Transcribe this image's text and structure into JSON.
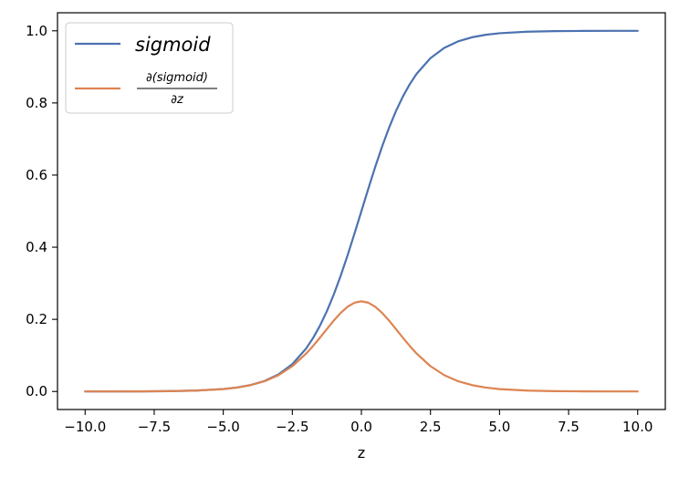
{
  "chart_data": {
    "type": "line",
    "xlabel": "z",
    "ylabel": "",
    "xlim": [
      -11.0,
      11.0
    ],
    "ylim": [
      -0.05,
      1.05
    ],
    "xticks": [
      -10.0,
      -7.5,
      -5.0,
      -2.5,
      0.0,
      2.5,
      5.0,
      7.5,
      10.0
    ],
    "xtick_labels": [
      "−10.0",
      "−7.5",
      "−5.0",
      "−2.5",
      "0.0",
      "2.5",
      "5.0",
      "7.5",
      "10.0"
    ],
    "yticks": [
      0.0,
      0.2,
      0.4,
      0.6,
      0.8,
      1.0
    ],
    "ytick_labels": [
      "0.0",
      "0.2",
      "0.4",
      "0.6",
      "0.8",
      "1.0"
    ],
    "grid": false,
    "legend_position": "top-left",
    "x": [
      -10.0,
      -9.0,
      -8.0,
      -7.0,
      -6.0,
      -5.0,
      -4.5,
      -4.0,
      -3.5,
      -3.0,
      -2.5,
      -2.0,
      -1.75,
      -1.5,
      -1.25,
      -1.0,
      -0.75,
      -0.5,
      -0.25,
      0.0,
      0.25,
      0.5,
      0.75,
      1.0,
      1.25,
      1.5,
      1.75,
      2.0,
      2.5,
      3.0,
      3.5,
      4.0,
      4.5,
      5.0,
      6.0,
      7.0,
      8.0,
      9.0,
      10.0
    ],
    "series": [
      {
        "name": "sigmoid",
        "color": "#4c72b0",
        "values": [
          4.54e-05,
          0.0001234,
          0.0003354,
          0.0009111,
          0.0024726,
          0.0066929,
          0.0109869,
          0.0179862,
          0.0293122,
          0.0474259,
          0.0758582,
          0.1192029,
          0.1480472,
          0.1824255,
          0.2227001,
          0.2689414,
          0.3208213,
          0.3775407,
          0.4378235,
          0.5,
          0.5621765,
          0.6224593,
          0.6791787,
          0.7310586,
          0.7772999,
          0.8175745,
          0.8519528,
          0.8807971,
          0.9241418,
          0.9525741,
          0.9706878,
          0.9820138,
          0.9890131,
          0.9933071,
          0.9975274,
          0.9990889,
          0.9996646,
          0.9998766,
          0.9999546
        ]
      },
      {
        "name_parts": {
          "numerator": "∂(sigmoid)",
          "denominator": "∂z"
        },
        "color": "#dd8452",
        "values": [
          4.54e-05,
          0.0001234,
          0.0003353,
          0.0009102,
          0.0024665,
          0.0066481,
          0.0108662,
          0.0176627,
          0.028453,
          0.0451767,
          0.0701037,
          0.1049936,
          0.1261292,
          0.1491465,
          0.1731047,
          0.1966119,
          0.2178949,
          0.2350037,
          0.246134,
          0.25,
          0.246134,
          0.2350037,
          0.2178949,
          0.1966119,
          0.1731047,
          0.1491465,
          0.1261292,
          0.1049936,
          0.0701037,
          0.0451767,
          0.028453,
          0.0176627,
          0.0108662,
          0.0066481,
          0.0024665,
          0.0009102,
          0.0003353,
          0.0001234,
          4.54e-05
        ]
      }
    ]
  }
}
